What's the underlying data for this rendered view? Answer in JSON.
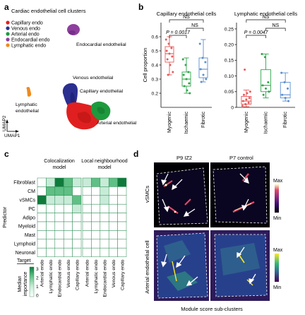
{
  "panels": {
    "a": {
      "letter": "a",
      "title": "Cardiac endothelial cell clusters",
      "legend": [
        {
          "label": "Capillary endo",
          "color": "#e02020"
        },
        {
          "label": "Venous endo",
          "color": "#2b2f8f"
        },
        {
          "label": "Arterial endo",
          "color": "#1e9a3e"
        },
        {
          "label": "Endocardial endo",
          "color": "#8e3f9e"
        },
        {
          "label": "Lymphatic endo",
          "color": "#f08a1c"
        }
      ],
      "cluster_labels": {
        "endocardial": "Endocardial endothelial",
        "venous": "Venous endothelial",
        "capillary": "Capillary endothelial",
        "lymphatic_1": "Lymphatic",
        "lymphatic_2": "endothelial",
        "arterial": "Arterial endothelial"
      },
      "axis_y": "UMAP2",
      "axis_x": "UMAP1"
    },
    "b": {
      "letter": "b",
      "chart_data": [
        {
          "type": "box",
          "title": "Capillary endothelial cells",
          "ylabel": "Cell proportion",
          "ylim": [
            0.1,
            0.7
          ],
          "yticks": [
            0.2,
            0.3,
            0.4,
            0.5,
            0.6
          ],
          "categories": [
            "Myogenic",
            "Ischaemic",
            "Fibrotic"
          ],
          "colors": [
            "#e8595a",
            "#2ea54a",
            "#5b8fd0"
          ],
          "boxes": [
            {
              "min": 0.33,
              "q1": 0.42,
              "median": 0.48,
              "q3": 0.53,
              "max": 0.6
            },
            {
              "min": 0.2,
              "q1": 0.25,
              "median": 0.3,
              "q3": 0.35,
              "max": 0.45
            },
            {
              "min": 0.28,
              "q1": 0.31,
              "median": 0.37,
              "q3": 0.45,
              "max": 0.58
            }
          ],
          "points": [
            [
              0.58,
              0.55,
              0.52,
              0.5,
              0.48,
              0.46,
              0.44,
              0.4,
              0.35,
              0.33
            ],
            [
              0.44,
              0.4,
              0.35,
              0.33,
              0.3,
              0.27,
              0.25,
              0.22,
              0.2
            ],
            [
              0.55,
              0.45,
              0.42,
              0.37,
              0.33,
              0.3,
              0.28
            ]
          ],
          "annotations": {
            "p": "P = 0.0017",
            "ns1": "NS",
            "ns2": "NS"
          }
        },
        {
          "type": "box",
          "title": "Lymphatic endothelial cells",
          "ylim": [
            0.0,
            0.27
          ],
          "yticks": [
            0.0,
            0.05,
            0.1,
            0.15,
            0.2,
            0.25
          ],
          "ytick_labels": [
            "0",
            "0.05",
            "0.10",
            "0.15",
            "0.20",
            "0.25"
          ],
          "categories": [
            "Myogenic",
            "Ischaemic",
            "Fibrotic"
          ],
          "colors": [
            "#e8595a",
            "#2ea54a",
            "#5b8fd0"
          ],
          "boxes": [
            {
              "min": 0.002,
              "q1": 0.01,
              "median": 0.02,
              "q3": 0.035,
              "max": 0.055
            },
            {
              "min": 0.03,
              "q1": 0.05,
              "median": 0.07,
              "q3": 0.12,
              "max": 0.17
            },
            {
              "min": 0.02,
              "q1": 0.03,
              "median": 0.04,
              "q3": 0.08,
              "max": 0.11
            }
          ],
          "points": [
            [
              0.005,
              0.01,
              0.015,
              0.02,
              0.025,
              0.03,
              0.04,
              0.045,
              0.05,
              0.12
            ],
            [
              0.17,
              0.16,
              0.08,
              0.07,
              0.06,
              0.05,
              0.04
            ],
            [
              0.11,
              0.08,
              0.06,
              0.04,
              0.03,
              0.02
            ]
          ],
          "annotations": {
            "p": "P = 0.0047",
            "ns1": "NS",
            "ns2": "NS"
          }
        }
      ]
    },
    "c": {
      "letter": "c",
      "chart_data": {
        "type": "heatmap",
        "groups": [
          "Colocalization model",
          "Local neighbourhood model"
        ],
        "group_lines": [
          [
            "Colocalization",
            "model"
          ],
          [
            "Local neighbourhood",
            "model"
          ]
        ],
        "rows": [
          "Fibroblast",
          "CM",
          "vSMCs",
          "PC",
          "Adipo",
          "Myeloid",
          "Mast",
          "Lymphoid",
          "Neuronal"
        ],
        "cols": [
          "Arterial endo",
          "Lymphatic endo",
          "Endocardial endo",
          "Venous endo",
          "Capillary endo"
        ],
        "values": [
          [
            [
              0,
              1,
              3,
              2,
              1
            ],
            [
              0,
              2,
              2,
              2,
              0
            ],
            [
              3,
              1,
              1,
              1,
              2
            ],
            [
              0,
              0,
              0,
              0,
              1
            ],
            [
              0,
              0,
              0,
              0,
              0
            ],
            [
              0,
              0,
              0,
              0,
              0
            ],
            [
              0,
              0,
              0,
              0,
              0
            ],
            [
              0,
              0,
              0,
              0,
              0
            ],
            [
              0,
              0,
              0,
              0,
              0
            ]
          ],
          [
            [
              1,
              2,
              1,
              2,
              3
            ],
            [
              0,
              0,
              1,
              0,
              0
            ],
            [
              0,
              0,
              1,
              0,
              0
            ],
            [
              0,
              0,
              0,
              0,
              0
            ],
            [
              0,
              0,
              0,
              0,
              0
            ],
            [
              0,
              0,
              0,
              0,
              0
            ],
            [
              0,
              0,
              0,
              0,
              0
            ],
            [
              0,
              0,
              0,
              0,
              0
            ],
            [
              0,
              0,
              0,
              0,
              0
            ]
          ]
        ],
        "ylabel": "Predictor",
        "target_label": "Target",
        "colorbar_label_1": "Median",
        "colorbar_label_2": "importance",
        "colorbar_ticks": [
          "3",
          "2",
          "1",
          "0"
        ],
        "colorscale": [
          "#ffffff",
          "#c8ebd8",
          "#5fbf84",
          "#0f7a3c"
        ]
      }
    },
    "d": {
      "letter": "d",
      "col_titles": [
        "P9 IZ2",
        "P7 control"
      ],
      "row_titles": [
        "vSMCs",
        "Arterial endothelial cell"
      ],
      "colorbar": {
        "max": "Max",
        "min": "Min"
      },
      "xlabel": "Module score sub-clusters"
    }
  }
}
